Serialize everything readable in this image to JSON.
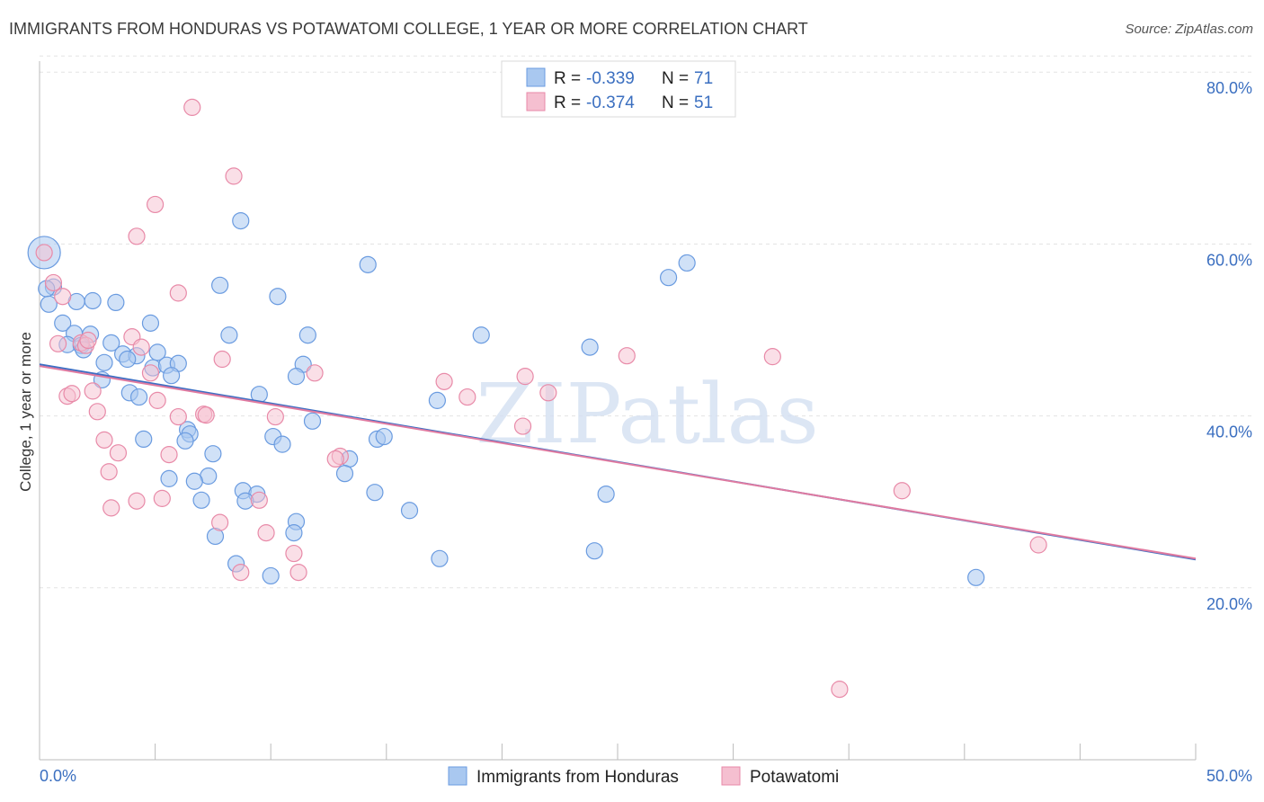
{
  "chart_data": {
    "type": "scatter",
    "title": "IMMIGRANTS FROM HONDURAS VS POTAWATOMI COLLEGE, 1 YEAR OR MORE CORRELATION CHART",
    "source": "Source: ZipAtlas.com",
    "xlabel": "",
    "ylabel": "College, 1 year or more",
    "xlim": [
      0,
      50
    ],
    "ylim": [
      0,
      82
    ],
    "x_tick_labels": [
      "0.0%",
      "50.0%"
    ],
    "y_ticks": [
      20,
      40,
      60,
      80
    ],
    "y_tick_labels": [
      "20.0%",
      "40.0%",
      "60.0%",
      "80.0%"
    ],
    "watermark": "ZIPatlas",
    "legend": {
      "entries": [
        {
          "r_label": "R =",
          "r_value": "-0.339",
          "n_label": "N =",
          "n_value": "71"
        },
        {
          "r_label": "R =",
          "r_value": "-0.374",
          "n_label": "N =",
          "n_value": "51"
        }
      ]
    },
    "colors": {
      "blue_fill": "#a9c8f0",
      "blue_stroke": "#6a9be0",
      "blue_line": "#3d6fc4",
      "pink_fill": "#f5bfd0",
      "pink_stroke": "#e88aa8",
      "pink_line": "#e07aa0",
      "grid": "#e3e3e3",
      "axis_text": "#3b6fc0"
    },
    "series": [
      {
        "name": "Immigrants from Honduras",
        "trend": {
          "x0": 0,
          "y0": 46.0,
          "x1": 50,
          "y1": 23.3
        },
        "points": [
          {
            "x": 0.2,
            "y": 59.0,
            "big": true
          },
          {
            "x": 0.6,
            "y": 55.0
          },
          {
            "x": 0.3,
            "y": 54.8
          },
          {
            "x": 0.4,
            "y": 53.0
          },
          {
            "x": 1.6,
            "y": 53.3
          },
          {
            "x": 2.3,
            "y": 53.4
          },
          {
            "x": 3.3,
            "y": 53.2
          },
          {
            "x": 1.0,
            "y": 50.8
          },
          {
            "x": 1.5,
            "y": 49.6
          },
          {
            "x": 2.2,
            "y": 49.5
          },
          {
            "x": 1.2,
            "y": 48.3
          },
          {
            "x": 1.8,
            "y": 48.2
          },
          {
            "x": 1.9,
            "y": 47.7
          },
          {
            "x": 3.1,
            "y": 48.5
          },
          {
            "x": 3.6,
            "y": 47.2
          },
          {
            "x": 4.2,
            "y": 47.0
          },
          {
            "x": 5.1,
            "y": 47.4
          },
          {
            "x": 2.8,
            "y": 46.2
          },
          {
            "x": 3.8,
            "y": 46.6
          },
          {
            "x": 4.9,
            "y": 45.6
          },
          {
            "x": 5.5,
            "y": 45.9
          },
          {
            "x": 6.0,
            "y": 46.1
          },
          {
            "x": 5.7,
            "y": 44.7
          },
          {
            "x": 2.7,
            "y": 44.2
          },
          {
            "x": 3.9,
            "y": 42.7
          },
          {
            "x": 4.3,
            "y": 42.2
          },
          {
            "x": 4.8,
            "y": 50.8
          },
          {
            "x": 7.8,
            "y": 55.2
          },
          {
            "x": 8.7,
            "y": 62.7
          },
          {
            "x": 8.2,
            "y": 49.4
          },
          {
            "x": 10.3,
            "y": 53.9
          },
          {
            "x": 11.6,
            "y": 49.4
          },
          {
            "x": 11.4,
            "y": 46.0
          },
          {
            "x": 11.1,
            "y": 44.6
          },
          {
            "x": 9.5,
            "y": 42.5
          },
          {
            "x": 11.8,
            "y": 39.4
          },
          {
            "x": 6.4,
            "y": 38.4
          },
          {
            "x": 6.5,
            "y": 37.9
          },
          {
            "x": 6.3,
            "y": 37.1
          },
          {
            "x": 4.5,
            "y": 37.3
          },
          {
            "x": 10.1,
            "y": 37.6
          },
          {
            "x": 10.5,
            "y": 36.7
          },
          {
            "x": 7.5,
            "y": 35.6
          },
          {
            "x": 13.4,
            "y": 35.0
          },
          {
            "x": 13.2,
            "y": 33.3
          },
          {
            "x": 7.3,
            "y": 33.0
          },
          {
            "x": 5.6,
            "y": 32.7
          },
          {
            "x": 6.7,
            "y": 32.4
          },
          {
            "x": 8.8,
            "y": 31.3
          },
          {
            "x": 9.4,
            "y": 30.9
          },
          {
            "x": 8.9,
            "y": 30.1
          },
          {
            "x": 7.0,
            "y": 30.2
          },
          {
            "x": 11.1,
            "y": 27.7
          },
          {
            "x": 7.6,
            "y": 26.0
          },
          {
            "x": 11.0,
            "y": 26.4
          },
          {
            "x": 8.5,
            "y": 22.8
          },
          {
            "x": 10.0,
            "y": 21.4
          },
          {
            "x": 14.2,
            "y": 57.6
          },
          {
            "x": 14.6,
            "y": 37.3
          },
          {
            "x": 14.9,
            "y": 37.6
          },
          {
            "x": 14.5,
            "y": 31.1
          },
          {
            "x": 16.0,
            "y": 29.0
          },
          {
            "x": 17.2,
            "y": 41.8
          },
          {
            "x": 17.3,
            "y": 23.4
          },
          {
            "x": 19.1,
            "y": 49.4
          },
          {
            "x": 23.8,
            "y": 48.0
          },
          {
            "x": 24.5,
            "y": 30.9
          },
          {
            "x": 24.0,
            "y": 24.3
          },
          {
            "x": 27.2,
            "y": 56.1
          },
          {
            "x": 28.0,
            "y": 57.8
          },
          {
            "x": 40.5,
            "y": 21.2
          }
        ]
      },
      {
        "name": "Potawatomi",
        "trend": {
          "x0": 0,
          "y0": 45.8,
          "x1": 50,
          "y1": 23.4
        },
        "points": [
          {
            "x": 0.2,
            "y": 59.0
          },
          {
            "x": 0.6,
            "y": 55.5
          },
          {
            "x": 1.0,
            "y": 53.9
          },
          {
            "x": 0.8,
            "y": 48.4
          },
          {
            "x": 1.8,
            "y": 48.5
          },
          {
            "x": 2.0,
            "y": 48.2
          },
          {
            "x": 4.0,
            "y": 49.2
          },
          {
            "x": 4.4,
            "y": 48.0
          },
          {
            "x": 4.8,
            "y": 45.0
          },
          {
            "x": 1.2,
            "y": 42.3
          },
          {
            "x": 1.4,
            "y": 42.6
          },
          {
            "x": 2.3,
            "y": 42.9
          },
          {
            "x": 2.5,
            "y": 40.5
          },
          {
            "x": 5.1,
            "y": 41.8
          },
          {
            "x": 6.0,
            "y": 39.9
          },
          {
            "x": 7.1,
            "y": 40.2
          },
          {
            "x": 2.8,
            "y": 37.2
          },
          {
            "x": 3.4,
            "y": 35.7
          },
          {
            "x": 5.6,
            "y": 35.5
          },
          {
            "x": 3.0,
            "y": 33.5
          },
          {
            "x": 4.2,
            "y": 30.1
          },
          {
            "x": 5.3,
            "y": 30.4
          },
          {
            "x": 3.1,
            "y": 29.3
          },
          {
            "x": 5.0,
            "y": 64.6
          },
          {
            "x": 4.2,
            "y": 60.9
          },
          {
            "x": 6.0,
            "y": 54.3
          },
          {
            "x": 6.6,
            "y": 75.9
          },
          {
            "x": 8.4,
            "y": 67.9
          },
          {
            "x": 7.9,
            "y": 46.6
          },
          {
            "x": 10.2,
            "y": 39.9
          },
          {
            "x": 9.5,
            "y": 30.2
          },
          {
            "x": 9.8,
            "y": 26.4
          },
          {
            "x": 7.8,
            "y": 27.6
          },
          {
            "x": 11.0,
            "y": 24.0
          },
          {
            "x": 11.2,
            "y": 21.8
          },
          {
            "x": 8.7,
            "y": 21.8
          },
          {
            "x": 11.9,
            "y": 45.0
          },
          {
            "x": 13.0,
            "y": 35.3
          },
          {
            "x": 17.5,
            "y": 44.0
          },
          {
            "x": 18.5,
            "y": 42.2
          },
          {
            "x": 21.0,
            "y": 44.6
          },
          {
            "x": 20.9,
            "y": 38.8
          },
          {
            "x": 22.0,
            "y": 42.7
          },
          {
            "x": 25.4,
            "y": 47.0
          },
          {
            "x": 31.7,
            "y": 46.9
          },
          {
            "x": 37.3,
            "y": 31.3
          },
          {
            "x": 43.2,
            "y": 25.0
          },
          {
            "x": 34.6,
            "y": 8.2
          },
          {
            "x": 7.2,
            "y": 40.1
          },
          {
            "x": 12.8,
            "y": 35.0
          },
          {
            "x": 2.1,
            "y": 48.8
          }
        ]
      }
    ],
    "bottom_legend": [
      "Immigrants from Honduras",
      "Potawatomi"
    ]
  }
}
